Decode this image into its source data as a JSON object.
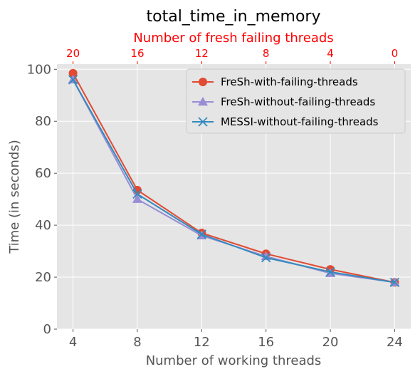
{
  "chart_data": {
    "type": "line",
    "title": "total_time_in_memory",
    "xlabel": "Number of working threads",
    "ylabel": "Time (in seconds)",
    "x": [
      4,
      8,
      12,
      16,
      20,
      24
    ],
    "x_tick_labels": [
      "4",
      "8",
      "12",
      "16",
      "20",
      "24"
    ],
    "xlim": [
      3,
      25
    ],
    "ylim": [
      0,
      102
    ],
    "y_ticks": [
      0,
      20,
      40,
      60,
      80,
      100
    ],
    "y_tick_labels": [
      "0",
      "20",
      "40",
      "60",
      "80",
      "100"
    ],
    "top_axis": {
      "label": "Number of fresh failing threads",
      "color": "#ff0000",
      "tick_labels": [
        "20",
        "16",
        "12",
        "8",
        "4",
        "0"
      ]
    },
    "grid": true,
    "legend_position": "top-right",
    "series": [
      {
        "name": "FreSh-with-failing-threads",
        "color": "#e24a33",
        "marker": "circle",
        "values": [
          98.5,
          53.5,
          37,
          29,
          23,
          18
        ]
      },
      {
        "name": "FreSh-without-failing-threads",
        "color": "#988ed5",
        "marker": "triangle",
        "values": [
          96,
          50,
          36,
          28,
          21.5,
          18
        ]
      },
      {
        "name": "MESSI-without-failing-threads",
        "color": "#348abd",
        "marker": "x",
        "values": [
          96,
          52,
          36.5,
          27.5,
          22,
          18
        ]
      }
    ]
  }
}
